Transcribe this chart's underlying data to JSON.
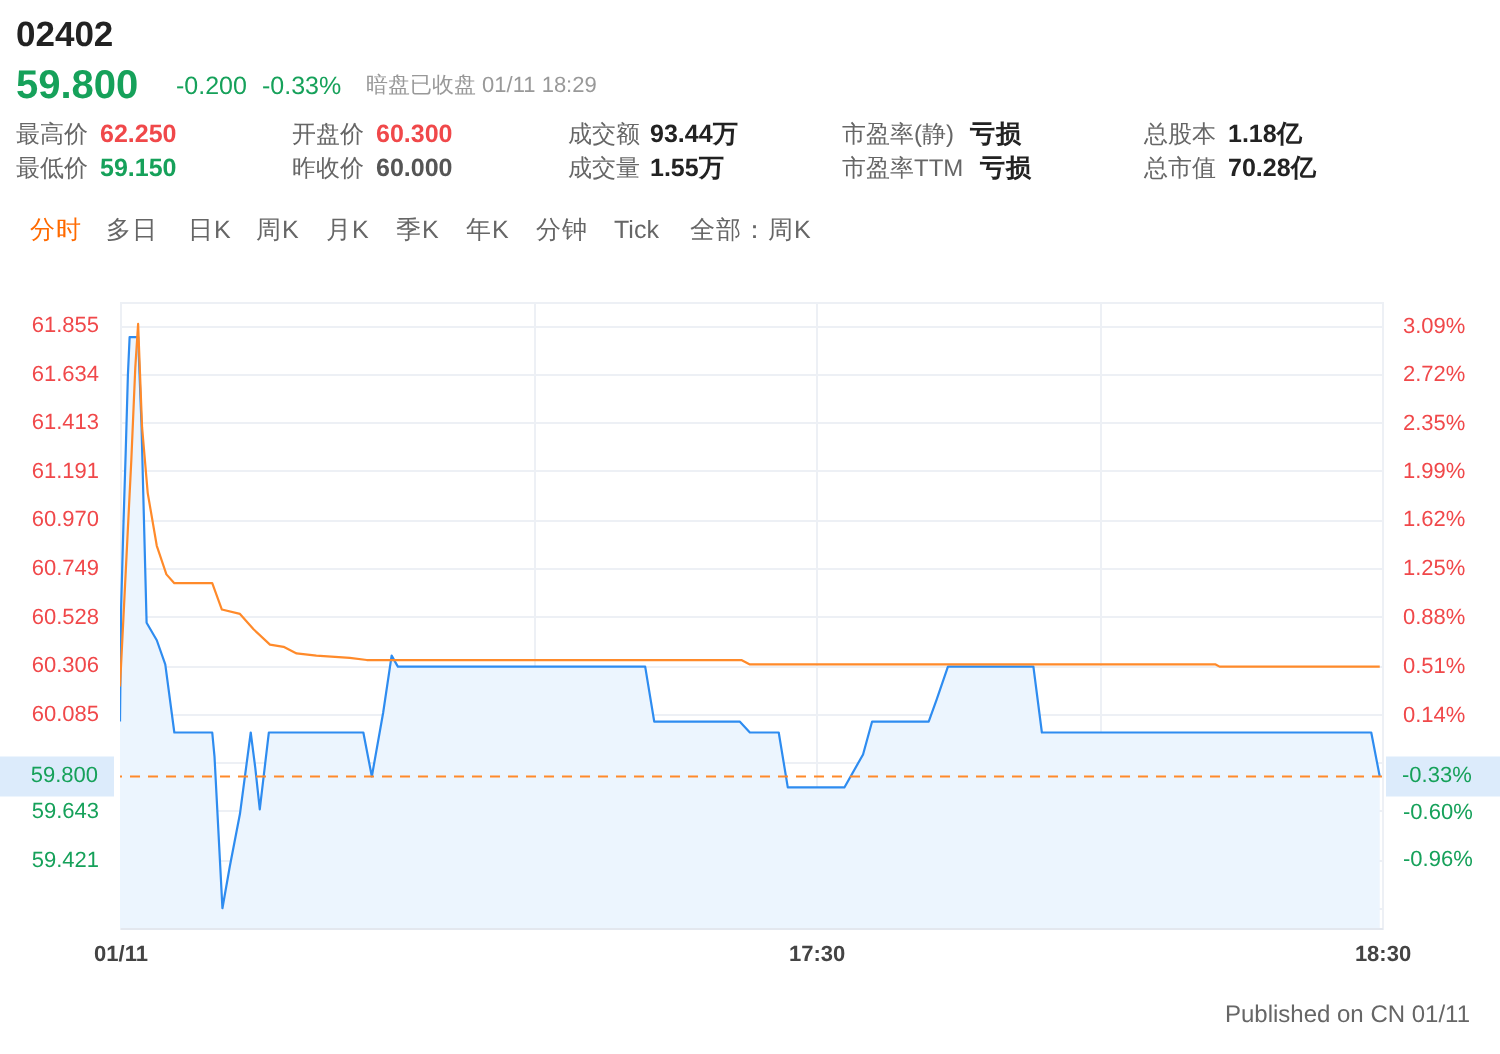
{
  "chart_data": {
    "type": "line",
    "title": "02402",
    "annotations": [
      "59.800",
      "-0.200",
      "-0.33%",
      "暗盘已收盘 01/11 18:29",
      "最高价",
      "62.250",
      "开盘价",
      "60.300",
      "成交额",
      "93.44万",
      "市盈率(静)",
      "亏损",
      "总股本",
      "1.18亿",
      "最低价",
      "59.150",
      "昨收价",
      "60.000",
      "成交量",
      "1.55万",
      "市盈率TTM",
      "亏损",
      "总市值",
      "70.28亿",
      "分时",
      "多日",
      "日K",
      "周K",
      "月K",
      "季K",
      "年K",
      "分钟",
      "Tick",
      "全部：周K",
      "Published on CN 01/11",
      {
        "text": "-0.33%",
        "x": 18.5,
        "y": 59.8
      }
    ],
    "xlim": [
      16.27,
      18.5
    ],
    "xticks": [
      {
        "value": 16.27,
        "label": "01/11"
      },
      {
        "value": 17,
        "label": null
      },
      {
        "value": 17.5,
        "label": "17:30"
      },
      {
        "value": 18,
        "label": null
      },
      {
        "value": 18.5,
        "label": "18:30"
      }
    ],
    "ylim": [
      59.11,
      61.96
    ],
    "yticks": [
      61.855,
      61.634,
      61.413,
      61.191,
      {
        "value": 60.97,
        "label": "60.970"
      },
      60.749,
      60.528,
      60.306,
      60.085,
      {
        "value": 59.864,
        "label": null
      },
      59.643,
      59.421,
      {
        "value": 59.2,
        "label": null
      }
    ],
    "y2lim": [
      -1.48,
      3.27
    ],
    "y2ticks": [
      {
        "value": 3.09,
        "label": "3.09%"
      },
      {
        "value": 2.72,
        "label": "2.72%"
      },
      {
        "value": 2.35,
        "label": "2.35%"
      },
      {
        "value": 1.99,
        "label": "1.99%"
      },
      {
        "value": 1.62,
        "label": "1.62%"
      },
      {
        "value": 1.25,
        "label": "1.25%"
      },
      {
        "value": 0.88,
        "label": "0.88%"
      },
      {
        "value": 0.51,
        "label": "0.51%"
      },
      {
        "value": 0.14,
        "label": "0.14%"
      },
      {
        "value": -0.23,
        "label": null
      },
      {
        "value": -0.6,
        "label": "-0.60%"
      },
      {
        "value": -0.96,
        "label": "-0.96%"
      }
    ],
    "grid": true,
    "series": [
      {
        "type": "area",
        "color": "#2e8cf0",
        "x": [
          16.27,
          16.272,
          16.276,
          16.28,
          16.284,
          16.287,
          16.302,
          16.308,
          16.317,
          16.335,
          16.35,
          16.366,
          16.433,
          16.437,
          16.451,
          16.464,
          16.482,
          16.501,
          16.509,
          16.517,
          16.533,
          16.7,
          16.715,
          16.735,
          16.75,
          16.761,
          17.198,
          17.214,
          17.365,
          17.383,
          17.434,
          17.45,
          17.55,
          17.583,
          17.599,
          17.699,
          17.713,
          17.733,
          17.884,
          17.899,
          18.481,
          18.496
        ],
        "values": [
          60.05,
          60.57,
          60.94,
          61.27,
          61.63,
          61.8,
          61.8,
          61.4,
          60.5,
          60.42,
          60.31,
          60.0,
          60.0,
          59.89,
          59.2,
          59.39,
          59.63,
          60.0,
          59.84,
          59.65,
          60.0,
          60.0,
          59.8,
          60.09,
          60.35,
          60.3,
          60.3,
          60.05,
          60.05,
          60.0,
          60.0,
          59.75,
          59.75,
          59.9,
          60.05,
          60.05,
          60.15,
          60.3,
          60.3,
          60.0,
          60.0,
          59.8
        ]
      },
      {
        "color": "#ff8a2a",
        "x": [
          16.27,
          16.29,
          16.297,
          16.302,
          16.309,
          16.319,
          16.335,
          16.352,
          16.366,
          16.433,
          16.45,
          16.482,
          16.506,
          16.535,
          16.559,
          16.582,
          16.617,
          16.676,
          16.706,
          17.368,
          17.383,
          18.206,
          18.213,
          18.496
        ],
        "values": [
          60.21,
          61.24,
          61.66,
          61.86,
          61.39,
          61.09,
          60.85,
          60.72,
          60.68,
          60.68,
          60.56,
          60.54,
          60.47,
          60.4,
          60.39,
          60.36,
          60.35,
          60.34,
          60.33,
          60.33,
          60.31,
          60.31,
          60.3,
          60.3
        ]
      }
    ],
    "ref_lines": [
      {
        "axis": "y",
        "value": 59.8,
        "label": "59.800",
        "color": "#ff8a2a",
        "line_style": "dashed"
      }
    ]
  }
}
